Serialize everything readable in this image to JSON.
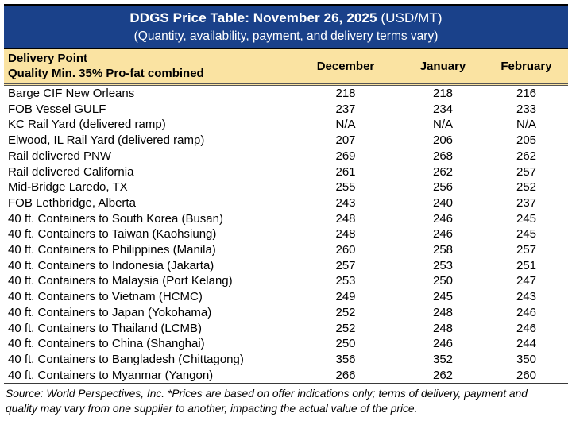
{
  "header": {
    "title_bold": "DDGS Price Table: November 26, 2025",
    "title_unit": " (USD/MT)",
    "subtitle": "(Quantity, availability, payment, and delivery terms vary)"
  },
  "table": {
    "col_header_line1": "Delivery Point",
    "col_header_line2": "Quality Min. 35% Pro-fat combined",
    "months": [
      "December",
      "January",
      "February"
    ],
    "rows": [
      {
        "label": "Barge CIF New Orleans",
        "values": [
          "218",
          "218",
          "216"
        ]
      },
      {
        "label": "FOB Vessel GULF",
        "values": [
          "237",
          "234",
          "233"
        ]
      },
      {
        "label": "KC Rail Yard (delivered ramp)",
        "values": [
          "N/A",
          "N/A",
          "N/A"
        ]
      },
      {
        "label": "Elwood, IL Rail Yard (delivered ramp)",
        "values": [
          "207",
          "206",
          "205"
        ]
      },
      {
        "label": "Rail delivered PNW",
        "values": [
          "269",
          "268",
          "262"
        ]
      },
      {
        "label": "Rail delivered California",
        "values": [
          "261",
          "262",
          "257"
        ]
      },
      {
        "label": "Mid-Bridge Laredo, TX",
        "values": [
          "255",
          "256",
          "252"
        ]
      },
      {
        "label": "FOB Lethbridge, Alberta",
        "values": [
          "243",
          "240",
          "237"
        ]
      },
      {
        "label": "40 ft. Containers to South Korea (Busan)",
        "values": [
          "248",
          "246",
          "245"
        ]
      },
      {
        "label": "40 ft. Containers to Taiwan (Kaohsiung)",
        "values": [
          "248",
          "246",
          "245"
        ]
      },
      {
        "label": "40 ft. Containers to Philippines (Manila)",
        "values": [
          "260",
          "258",
          "257"
        ]
      },
      {
        "label": "40 ft. Containers to Indonesia (Jakarta)",
        "values": [
          "257",
          "253",
          "251"
        ]
      },
      {
        "label": "40 ft. Containers to Malaysia (Port Kelang)",
        "values": [
          "253",
          "250",
          "247"
        ]
      },
      {
        "label": "40 ft. Containers to Vietnam (HCMC)",
        "values": [
          "249",
          "245",
          "243"
        ]
      },
      {
        "label": "40 ft. Containers to Japan (Yokohama)",
        "values": [
          "252",
          "248",
          "246"
        ]
      },
      {
        "label": "40 ft. Containers to Thailand (LCMB)",
        "values": [
          "252",
          "248",
          "246"
        ]
      },
      {
        "label": "40 ft. Containers to China (Shanghai)",
        "values": [
          "250",
          "246",
          "244"
        ]
      },
      {
        "label": "40 ft. Containers to Bangladesh (Chittagong)",
        "values": [
          "356",
          "352",
          "350"
        ]
      },
      {
        "label": "40 ft. Containers to Myanmar (Yangon)",
        "values": [
          "266",
          "262",
          "260"
        ]
      }
    ]
  },
  "footer": {
    "line1": "Source: World Perspectives, Inc. *Prices are based on offer indications only; terms of delivery, payment and",
    "line2": "quality may vary from one supplier to another, impacting the actual value of the price."
  },
  "colors": {
    "header_bg": "#1A418A",
    "header_text": "#FFFFFF",
    "column_header_bg": "#FAE3A2",
    "body_bg": "#FFFFFF",
    "text": "#000000"
  }
}
